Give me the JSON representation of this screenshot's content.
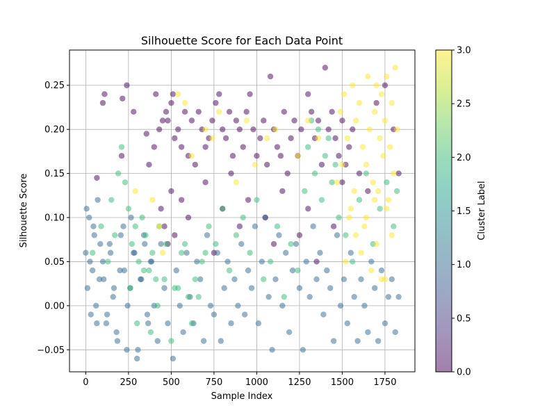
{
  "chart_data": {
    "type": "scatter",
    "title": "Silhouette Score for Each Data Point",
    "xlabel": "Sample Index",
    "ylabel": "Silhouette Score",
    "xlim": [
      -95,
      1925
    ],
    "ylim": [
      -0.075,
      0.29
    ],
    "x_ticks": [
      0,
      250,
      500,
      750,
      1000,
      1250,
      1500,
      1750
    ],
    "y_ticks": [
      -0.05,
      0.0,
      0.05,
      0.1,
      0.15,
      0.2,
      0.25
    ],
    "y_tick_labels": [
      "−0.05",
      "0.00",
      "0.05",
      "0.10",
      "0.15",
      "0.20",
      "0.25"
    ],
    "grid": true,
    "marker_alpha": 0.5,
    "colormap": "viridis",
    "colors": {
      "cluster_0": "#440154",
      "cluster_1": "#31688e",
      "cluster_2": "#35b779",
      "cluster_3": "#fde725"
    },
    "colorbar": {
      "label": "Cluster Label",
      "range": [
        0.0,
        3.0
      ],
      "ticks": [
        "0.0",
        "0.5",
        "1.0",
        "1.5",
        "2.0",
        "2.5",
        "3.0"
      ]
    },
    "series": [
      {
        "cluster": 0,
        "x": [
          65,
          100,
          110,
          210,
          215,
          240,
          280,
          355,
          370,
          400,
          410,
          430,
          450,
          470,
          480,
          500,
          510,
          520,
          540,
          560,
          580,
          600,
          620,
          640,
          660,
          680,
          700,
          720,
          740,
          760,
          780,
          800,
          820,
          840,
          860,
          880,
          900,
          920,
          940,
          960,
          980,
          1000,
          1020,
          1040,
          1060,
          1080,
          1100,
          1120,
          1140,
          1160,
          1180,
          1200,
          1220,
          1240,
          1260,
          1300,
          1320,
          1340,
          1360,
          1380,
          1400,
          1420,
          1440,
          1460,
          1480,
          1500,
          1520,
          1540,
          1560,
          1600,
          1650,
          1700,
          1750,
          1800,
          1830,
          440,
          460,
          480,
          500,
          520,
          560,
          600,
          700,
          750,
          800,
          850,
          900,
          950,
          1050,
          1100,
          1150,
          1250,
          1300,
          1350,
          1450,
          1500
        ],
        "y": [
          0.145,
          0.23,
          0.24,
          0.17,
          0.235,
          0.25,
          0.22,
          0.195,
          0.16,
          0.18,
          0.24,
          0.2,
          0.21,
          0.22,
          0.21,
          0.23,
          0.24,
          0.19,
          0.2,
          0.18,
          0.22,
          0.17,
          0.21,
          0.16,
          0.22,
          0.2,
          0.18,
          0.19,
          0.21,
          0.23,
          0.24,
          0.2,
          0.19,
          0.22,
          0.17,
          0.21,
          0.2,
          0.18,
          0.22,
          0.24,
          0.2,
          0.17,
          0.19,
          0.21,
          0.16,
          0.26,
          0.2,
          0.18,
          0.17,
          0.22,
          0.15,
          0.19,
          0.21,
          0.17,
          0.2,
          0.24,
          0.22,
          0.19,
          0.21,
          0.16,
          0.27,
          0.2,
          0.22,
          0.19,
          0.17,
          0.21,
          0.16,
          0.18,
          0.2,
          0.15,
          0.13,
          0.23,
          0.25,
          0.2,
          0.15,
          0.11,
          0.09,
          0.07,
          0.13,
          0.08,
          0.12,
          0.1,
          0.14,
          0.06,
          0.11,
          0.15,
          0.09,
          0.12,
          0.1,
          0.07,
          0.13,
          0.08,
          0.11,
          0.05,
          0.09,
          0.14
        ]
      },
      {
        "cluster": 1,
        "x": [
          0,
          10,
          20,
          30,
          40,
          50,
          60,
          70,
          80,
          100,
          120,
          140,
          160,
          180,
          200,
          220,
          240,
          260,
          280,
          300,
          320,
          340,
          360,
          380,
          400,
          420,
          440,
          460,
          480,
          510,
          530,
          550,
          570,
          590,
          610,
          630,
          650,
          670,
          690,
          710,
          730,
          750,
          770,
          790,
          810,
          830,
          850,
          870,
          890,
          910,
          930,
          950,
          970,
          990,
          1010,
          1030,
          1050,
          1070,
          1090,
          1110,
          1130,
          1150,
          1170,
          1190,
          1210,
          1230,
          1250,
          1270,
          1290,
          1310,
          1330,
          1350,
          1370,
          1390,
          1410,
          1430,
          1450,
          1470,
          1490,
          1510,
          1530,
          1550,
          1570,
          1590,
          1610,
          1630,
          1650,
          1670,
          1690,
          1710,
          1730,
          1750,
          1770,
          1790,
          1810,
          1830,
          5,
          25,
          45,
          65,
          85,
          105,
          125,
          145,
          165,
          185,
          205,
          225,
          245,
          265,
          285,
          305,
          325,
          345,
          365,
          385
        ],
        "y": [
          0.06,
          0.02,
          0.1,
          -0.01,
          0.04,
          0.08,
          0.0,
          0.12,
          0.03,
          0.05,
          -0.02,
          0.07,
          0.01,
          -0.03,
          0.04,
          0.09,
          -0.05,
          0.02,
          0.06,
          -0.06,
          0.03,
          0.08,
          -0.01,
          0.05,
          0.0,
          -0.04,
          0.07,
          0.02,
          -0.02,
          -0.06,
          0.04,
          0.0,
          -0.03,
          0.06,
          0.01,
          -0.02,
          0.05,
          0.03,
          -0.04,
          0.08,
          0.0,
          -0.01,
          0.06,
          -0.04,
          0.02,
          0.05,
          -0.02,
          0.03,
          0.0,
          0.07,
          -0.01,
          0.04,
          0.02,
          0.09,
          -0.02,
          0.05,
          0.1,
          0.01,
          -0.05,
          0.03,
          0.08,
          0.0,
          0.06,
          -0.03,
          0.04,
          0.07,
          0.02,
          -0.05,
          0.05,
          0.01,
          0.09,
          0.03,
          0.06,
          -0.01,
          0.04,
          0.02,
          -0.04,
          0.08,
          0.0,
          0.03,
          -0.02,
          0.06,
          0.01,
          -0.04,
          0.03,
          0.0,
          -0.03,
          0.05,
          0.02,
          -0.04,
          0.04,
          -0.02,
          0.01,
          0.03,
          -0.03,
          0.01,
          0.11,
          0.05,
          0.09,
          -0.02,
          0.07,
          0.03,
          -0.01,
          0.06,
          0.02,
          -0.04,
          0.08,
          0.04,
          0.0,
          0.1,
          0.06,
          -0.05,
          0.03,
          0.07,
          -0.02,
          0.05
        ]
      },
      {
        "cluster": 2,
        "x": [
          40,
          90,
          130,
          150,
          170,
          190,
          210,
          230,
          250,
          270,
          290,
          310,
          330,
          350,
          370,
          390,
          410,
          430,
          470,
          520,
          560,
          600,
          640,
          680,
          720,
          760,
          800,
          840,
          880,
          920,
          960,
          1000,
          1040,
          1080,
          1120,
          1160,
          1200,
          1240,
          1280,
          1300,
          1320,
          1340,
          1360,
          1380,
          1400,
          1420,
          1440,
          1460,
          1480,
          1520,
          1560,
          1600,
          1640,
          1680,
          1720,
          1760,
          1800,
          1820,
          260,
          300,
          340,
          380,
          420,
          460,
          500,
          540,
          580,
          620,
          660,
          700
        ],
        "y": [
          0.06,
          0.09,
          0.05,
          0.12,
          0.08,
          0.15,
          0.18,
          0.14,
          0.11,
          0.07,
          0.09,
          0.05,
          0.1,
          0.08,
          0.04,
          0.06,
          0.03,
          0.09,
          0.07,
          0.02,
          0.06,
          0.01,
          0.03,
          0.05,
          0.09,
          0.07,
          0.11,
          0.04,
          0.08,
          0.1,
          0.06,
          0.12,
          0.03,
          0.05,
          0.09,
          0.01,
          0.07,
          0.04,
          0.13,
          0.18,
          0.21,
          0.15,
          0.2,
          0.12,
          0.17,
          0.19,
          0.14,
          0.16,
          0.1,
          0.08,
          0.05,
          0.12,
          0.15,
          0.07,
          0.11,
          0.14,
          0.09,
          0.13,
          0.02,
          -0.02,
          0.04,
          -0.03,
          0.0,
          0.03,
          -0.04,
          0.02,
          0.07,
          -0.02,
          0.01,
          0.06
        ]
      },
      {
        "cluster": 3,
        "x": [
          290,
          390,
          430,
          450,
          540,
          580,
          620,
          700,
          740,
          780,
          880,
          940,
          990,
          1060,
          1110,
          1240,
          1300,
          1360,
          1470,
          1490,
          1510,
          1530,
          1550,
          1560,
          1580,
          1600,
          1620,
          1640,
          1650,
          1660,
          1680,
          1690,
          1700,
          1710,
          1720,
          1730,
          1740,
          1750,
          1760,
          1770,
          1780,
          1790,
          1800,
          1810,
          1820,
          1500,
          1540,
          1570,
          1610,
          1630,
          1670,
          1700,
          1730,
          1760,
          1790,
          1520,
          1580,
          1640,
          1690,
          1750
        ],
        "y": [
          0.13,
          0.12,
          0.09,
          0.06,
          0.24,
          0.23,
          0.17,
          0.2,
          0.19,
          0.22,
          0.14,
          0.21,
          0.16,
          0.19,
          0.2,
          0.17,
          0.21,
          0.19,
          0.14,
          0.22,
          0.24,
          0.19,
          0.11,
          0.25,
          0.21,
          0.23,
          0.18,
          0.16,
          0.26,
          0.2,
          0.14,
          0.22,
          0.25,
          0.13,
          0.19,
          0.24,
          0.17,
          0.21,
          0.26,
          0.12,
          0.18,
          0.23,
          0.15,
          0.27,
          0.2,
          0.16,
          0.1,
          0.13,
          0.06,
          0.09,
          0.04,
          0.07,
          0.03,
          0.11,
          0.08,
          0.05,
          0.08,
          0.1,
          0.12,
          0.03
        ]
      }
    ]
  }
}
